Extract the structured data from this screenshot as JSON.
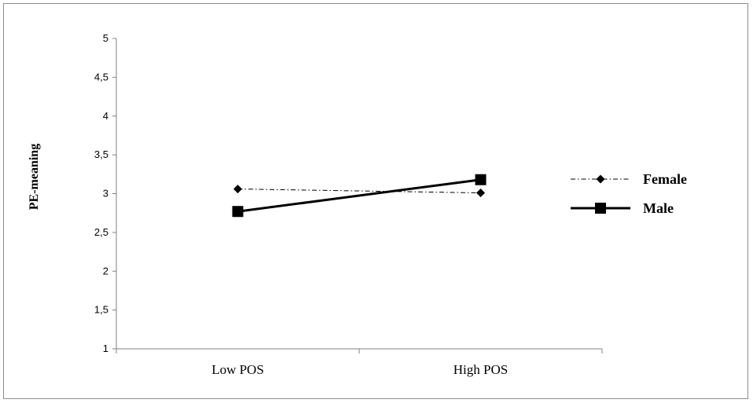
{
  "chart_data": {
    "type": "line",
    "categories": [
      "Low POS",
      "High POS"
    ],
    "series": [
      {
        "name": "Female",
        "values": [
          3.06,
          3.01
        ],
        "marker": "diamond",
        "line": "dash-dot",
        "color": "#000000"
      },
      {
        "name": "Male",
        "values": [
          2.77,
          3.18
        ],
        "marker": "square",
        "line": "solid",
        "color": "#000000"
      }
    ],
    "yticks": [
      "1",
      "1,5",
      "2",
      "2,5",
      "3",
      "3,5",
      "4",
      "4,5",
      "5"
    ],
    "ylim": [
      1,
      5
    ],
    "ylabel": "PE-meaning",
    "xlabel": "",
    "title": "",
    "grid": false,
    "legend_position": "right"
  }
}
